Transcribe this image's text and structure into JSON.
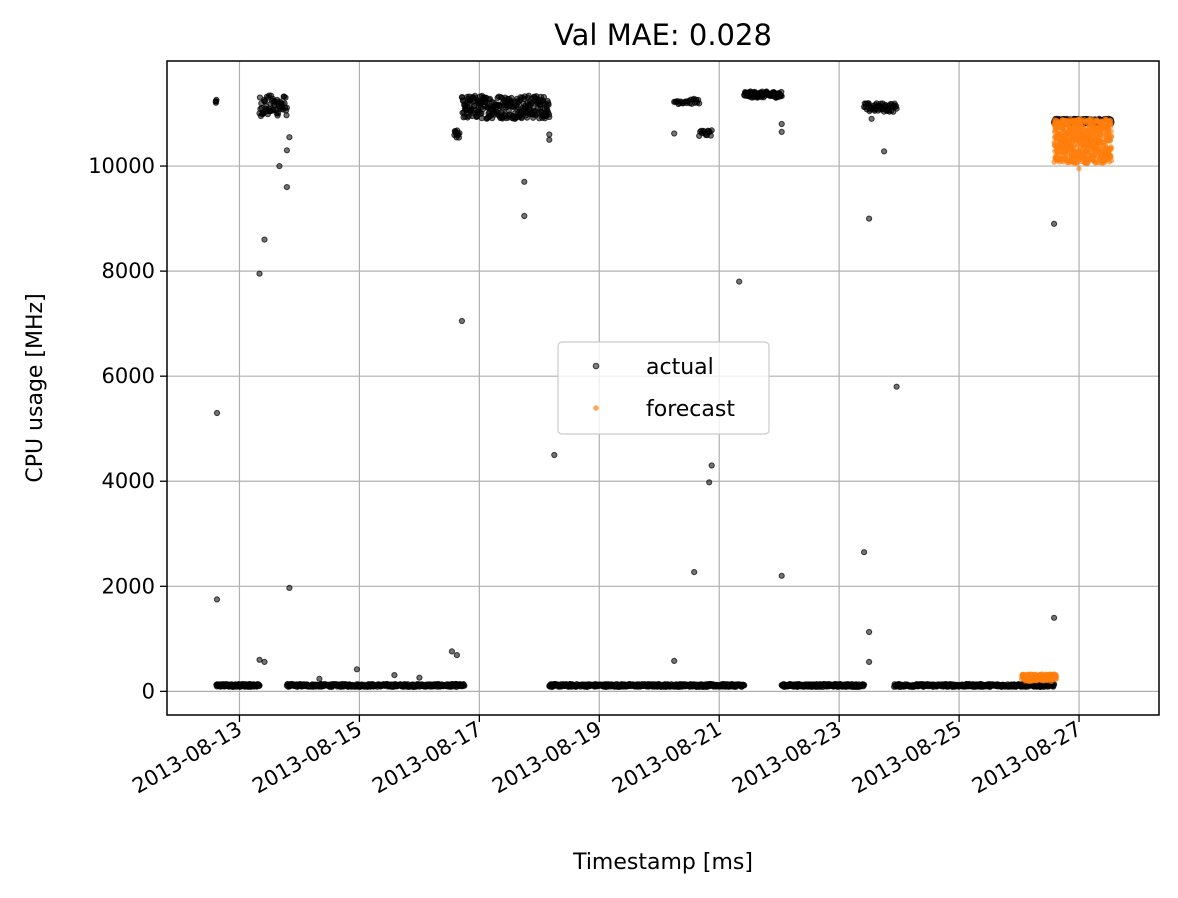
{
  "chart_data": {
    "type": "scatter",
    "title": "Val MAE: 0.028",
    "xlabel": "Timestamp [ms]",
    "ylabel": "CPU usage [MHz]",
    "x_type": "date",
    "xlim": [
      "2013-08-11T19:00",
      "2013-08-28T08:00"
    ],
    "ylim": [
      -450,
      12000
    ],
    "x_ticks": [
      "2013-08-13",
      "2013-08-15",
      "2013-08-17",
      "2013-08-19",
      "2013-08-21",
      "2013-08-23",
      "2013-08-25",
      "2013-08-27"
    ],
    "y_ticks": [
      0,
      2000,
      4000,
      6000,
      8000,
      10000
    ],
    "grid": true,
    "legend_position": "center",
    "series": [
      {
        "name": "actual",
        "color": "#000000",
        "clusters": [
          {
            "x_start": "2013-08-12T14:30",
            "x_end": "2013-08-12T14:45",
            "y_min": 11180,
            "y_max": 11260,
            "count": 4
          },
          {
            "x_start": "2013-08-12T14:45",
            "x_end": "2013-08-13T08:00",
            "y_min": 85,
            "y_max": 140,
            "count": 150
          },
          {
            "x_start": "2013-08-13T08:00",
            "x_end": "2013-08-13T19:00",
            "y_min": 10950,
            "y_max": 11350,
            "count": 60
          },
          {
            "x_start": "2013-08-13T19:00",
            "x_end": "2013-08-16T18:00",
            "y_min": 85,
            "y_max": 140,
            "count": 400
          },
          {
            "x_start": "2013-08-16T14:00",
            "x_end": "2013-08-16T16:00",
            "y_min": 10520,
            "y_max": 10680,
            "count": 12
          },
          {
            "x_start": "2013-08-16T17:00",
            "x_end": "2013-08-18T04:00",
            "y_min": 10900,
            "y_max": 11350,
            "count": 260
          },
          {
            "x_start": "2013-08-18T04:00",
            "x_end": "2013-08-20T20:00",
            "y_min": 85,
            "y_max": 140,
            "count": 380
          },
          {
            "x_start": "2013-08-20T06:00",
            "x_end": "2013-08-20T16:00",
            "y_min": 11180,
            "y_max": 11280,
            "count": 25
          },
          {
            "x_start": "2013-08-20T16:00",
            "x_end": "2013-08-20T21:00",
            "y_min": 10570,
            "y_max": 10680,
            "count": 14
          },
          {
            "x_start": "2013-08-20T20:00",
            "x_end": "2013-08-21T10:00",
            "y_min": 85,
            "y_max": 140,
            "count": 90
          },
          {
            "x_start": "2013-08-21T10:00",
            "x_end": "2013-08-22T01:00",
            "y_min": 11300,
            "y_max": 11420,
            "count": 90
          },
          {
            "x_start": "2013-08-22T01:00",
            "x_end": "2013-08-23T10:00",
            "y_min": 85,
            "y_max": 140,
            "count": 200
          },
          {
            "x_start": "2013-08-23T10:00",
            "x_end": "2013-08-23T23:00",
            "y_min": 11030,
            "y_max": 11200,
            "count": 50
          },
          {
            "x_start": "2013-08-23T22:00",
            "x_end": "2013-08-26T14:00",
            "y_min": 85,
            "y_max": 140,
            "count": 380
          },
          {
            "x_start": "2013-08-26T14:00",
            "x_end": "2013-08-27T13:00",
            "y_min": 10800,
            "y_max": 10900,
            "count": 180
          }
        ],
        "outliers": [
          {
            "x": "2013-08-12T15:00",
            "y": 5300
          },
          {
            "x": "2013-08-12T15:00",
            "y": 1750
          },
          {
            "x": "2013-08-13T08:00",
            "y": 7950
          },
          {
            "x": "2013-08-13T08:00",
            "y": 600
          },
          {
            "x": "2013-08-13T10:00",
            "y": 8600
          },
          {
            "x": "2013-08-13T10:00",
            "y": 560
          },
          {
            "x": "2013-08-13T16:00",
            "y": 10000
          },
          {
            "x": "2013-08-13T19:00",
            "y": 9600
          },
          {
            "x": "2013-08-13T19:00",
            "y": 10300
          },
          {
            "x": "2013-08-13T20:00",
            "y": 10550
          },
          {
            "x": "2013-08-13T20:00",
            "y": 1970
          },
          {
            "x": "2013-08-14T08:00",
            "y": 240
          },
          {
            "x": "2013-08-14T23:00",
            "y": 420
          },
          {
            "x": "2013-08-15T14:00",
            "y": 310
          },
          {
            "x": "2013-08-16T00:00",
            "y": 260
          },
          {
            "x": "2013-08-16T13:00",
            "y": 760
          },
          {
            "x": "2013-08-16T15:00",
            "y": 690
          },
          {
            "x": "2013-08-16T17:00",
            "y": 7050
          },
          {
            "x": "2013-08-17T18:00",
            "y": 9700
          },
          {
            "x": "2013-08-17T18:00",
            "y": 9050
          },
          {
            "x": "2013-08-18T04:00",
            "y": 10600
          },
          {
            "x": "2013-08-18T04:00",
            "y": 10500
          },
          {
            "x": "2013-08-18T06:00",
            "y": 4500
          },
          {
            "x": "2013-08-20T06:00",
            "y": 10620
          },
          {
            "x": "2013-08-20T06:00",
            "y": 580
          },
          {
            "x": "2013-08-20T14:00",
            "y": 2270
          },
          {
            "x": "2013-08-20T20:00",
            "y": 3980
          },
          {
            "x": "2013-08-20T21:00",
            "y": 4300
          },
          {
            "x": "2013-08-21T08:00",
            "y": 7800
          },
          {
            "x": "2013-08-22T01:00",
            "y": 10800
          },
          {
            "x": "2013-08-22T01:00",
            "y": 10650
          },
          {
            "x": "2013-08-22T01:00",
            "y": 2200
          },
          {
            "x": "2013-08-23T10:00",
            "y": 2650
          },
          {
            "x": "2013-08-23T12:00",
            "y": 1130
          },
          {
            "x": "2013-08-23T12:00",
            "y": 560
          },
          {
            "x": "2013-08-23T12:00",
            "y": 9000
          },
          {
            "x": "2013-08-23T13:00",
            "y": 10900
          },
          {
            "x": "2013-08-23T18:00",
            "y": 10280
          },
          {
            "x": "2013-08-23T23:00",
            "y": 5800
          },
          {
            "x": "2013-08-26T14:00",
            "y": 8900
          },
          {
            "x": "2013-08-26T14:00",
            "y": 1400
          }
        ]
      },
      {
        "name": "forecast",
        "color": "#ff7f0e",
        "clusters": [
          {
            "x_start": "2013-08-26T01:00",
            "x_end": "2013-08-26T15:00",
            "y_min": 190,
            "y_max": 330,
            "count": 160
          },
          {
            "x_start": "2013-08-26T14:00",
            "x_end": "2013-08-27T13:00",
            "y_min": 10050,
            "y_max": 10900,
            "count": 700
          }
        ],
        "outliers": [
          {
            "x": "2013-08-27T00:00",
            "y": 9950
          },
          {
            "x": "2013-08-26T20:00",
            "y": 10100
          }
        ]
      }
    ]
  }
}
